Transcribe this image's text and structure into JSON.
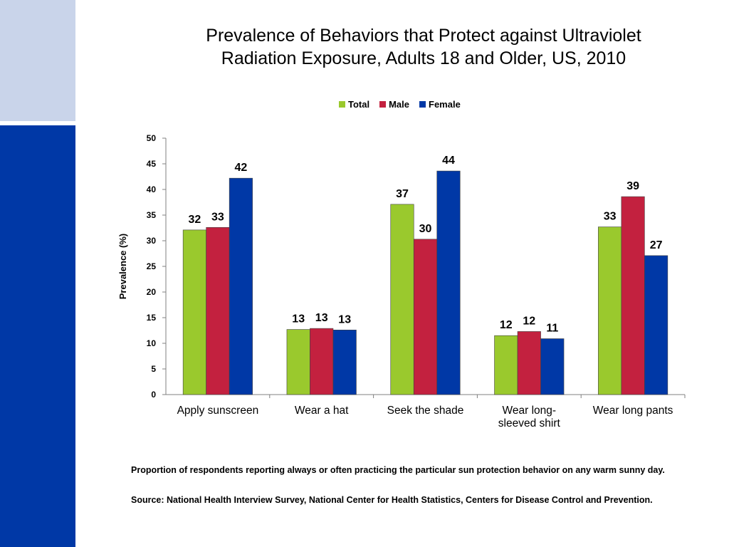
{
  "title_line1": "Prevalence of Behaviors that Protect against Ultraviolet",
  "title_line2": "Radiation Exposure, Adults 18 and Older, US, 2010",
  "note_proportion": "Proportion of respondents reporting always or often practicing the particular sun protection behavior on any warm sunny day.",
  "note_source": "Source: National Health Interview Survey, National Center for Health Statistics, Centers for Disease Control and Prevention.",
  "colors": {
    "sidebar_light": "#c9d4ea",
    "sidebar_dark": "#0038a6"
  },
  "chart_data": {
    "type": "bar",
    "ylabel": "Prevalence (%)",
    "xlabel": "",
    "ylim": [
      0,
      50
    ],
    "yticks": [
      0,
      5,
      10,
      15,
      20,
      25,
      30,
      35,
      40,
      45,
      50
    ],
    "grid": false,
    "legend_position": "top",
    "categories": [
      [
        "Apply sunscreen"
      ],
      [
        "Wear a hat"
      ],
      [
        "Seek the shade"
      ],
      [
        "Wear long-",
        "sleeved shirt"
      ],
      [
        "Wear long pants"
      ]
    ],
    "series": [
      {
        "name": "Total",
        "color": "#9ac92d",
        "values": [
          32.1,
          12.7,
          37.1,
          11.5,
          32.7
        ],
        "labels": [
          "32",
          "13",
          "37",
          "12",
          "33"
        ]
      },
      {
        "name": "Male",
        "color": "#c3213f",
        "values": [
          32.6,
          12.9,
          30.3,
          12.3,
          38.6
        ],
        "labels": [
          "33",
          "13",
          "30",
          "12",
          "39"
        ]
      },
      {
        "name": "Female",
        "color": "#0038a6",
        "values": [
          42.2,
          12.6,
          43.6,
          10.9,
          27.1
        ],
        "labels": [
          "42",
          "13",
          "44",
          "11",
          "27"
        ]
      }
    ]
  }
}
